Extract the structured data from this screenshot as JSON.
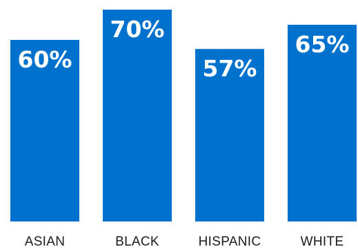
{
  "chart_data": {
    "type": "bar",
    "categories": [
      "ASIAN",
      "BLACK",
      "HISPANIC",
      "WHITE"
    ],
    "values": [
      60,
      70,
      57,
      65
    ],
    "value_labels": [
      "60%",
      "70%",
      "57%",
      "65%"
    ],
    "title": "",
    "xlabel": "",
    "ylabel": "",
    "ylim": [
      0,
      75
    ],
    "grid": false,
    "legend": "none"
  },
  "colors": {
    "bar": "#0072CE",
    "value_text": "#ffffff",
    "category_text": "#1a1a1a"
  }
}
